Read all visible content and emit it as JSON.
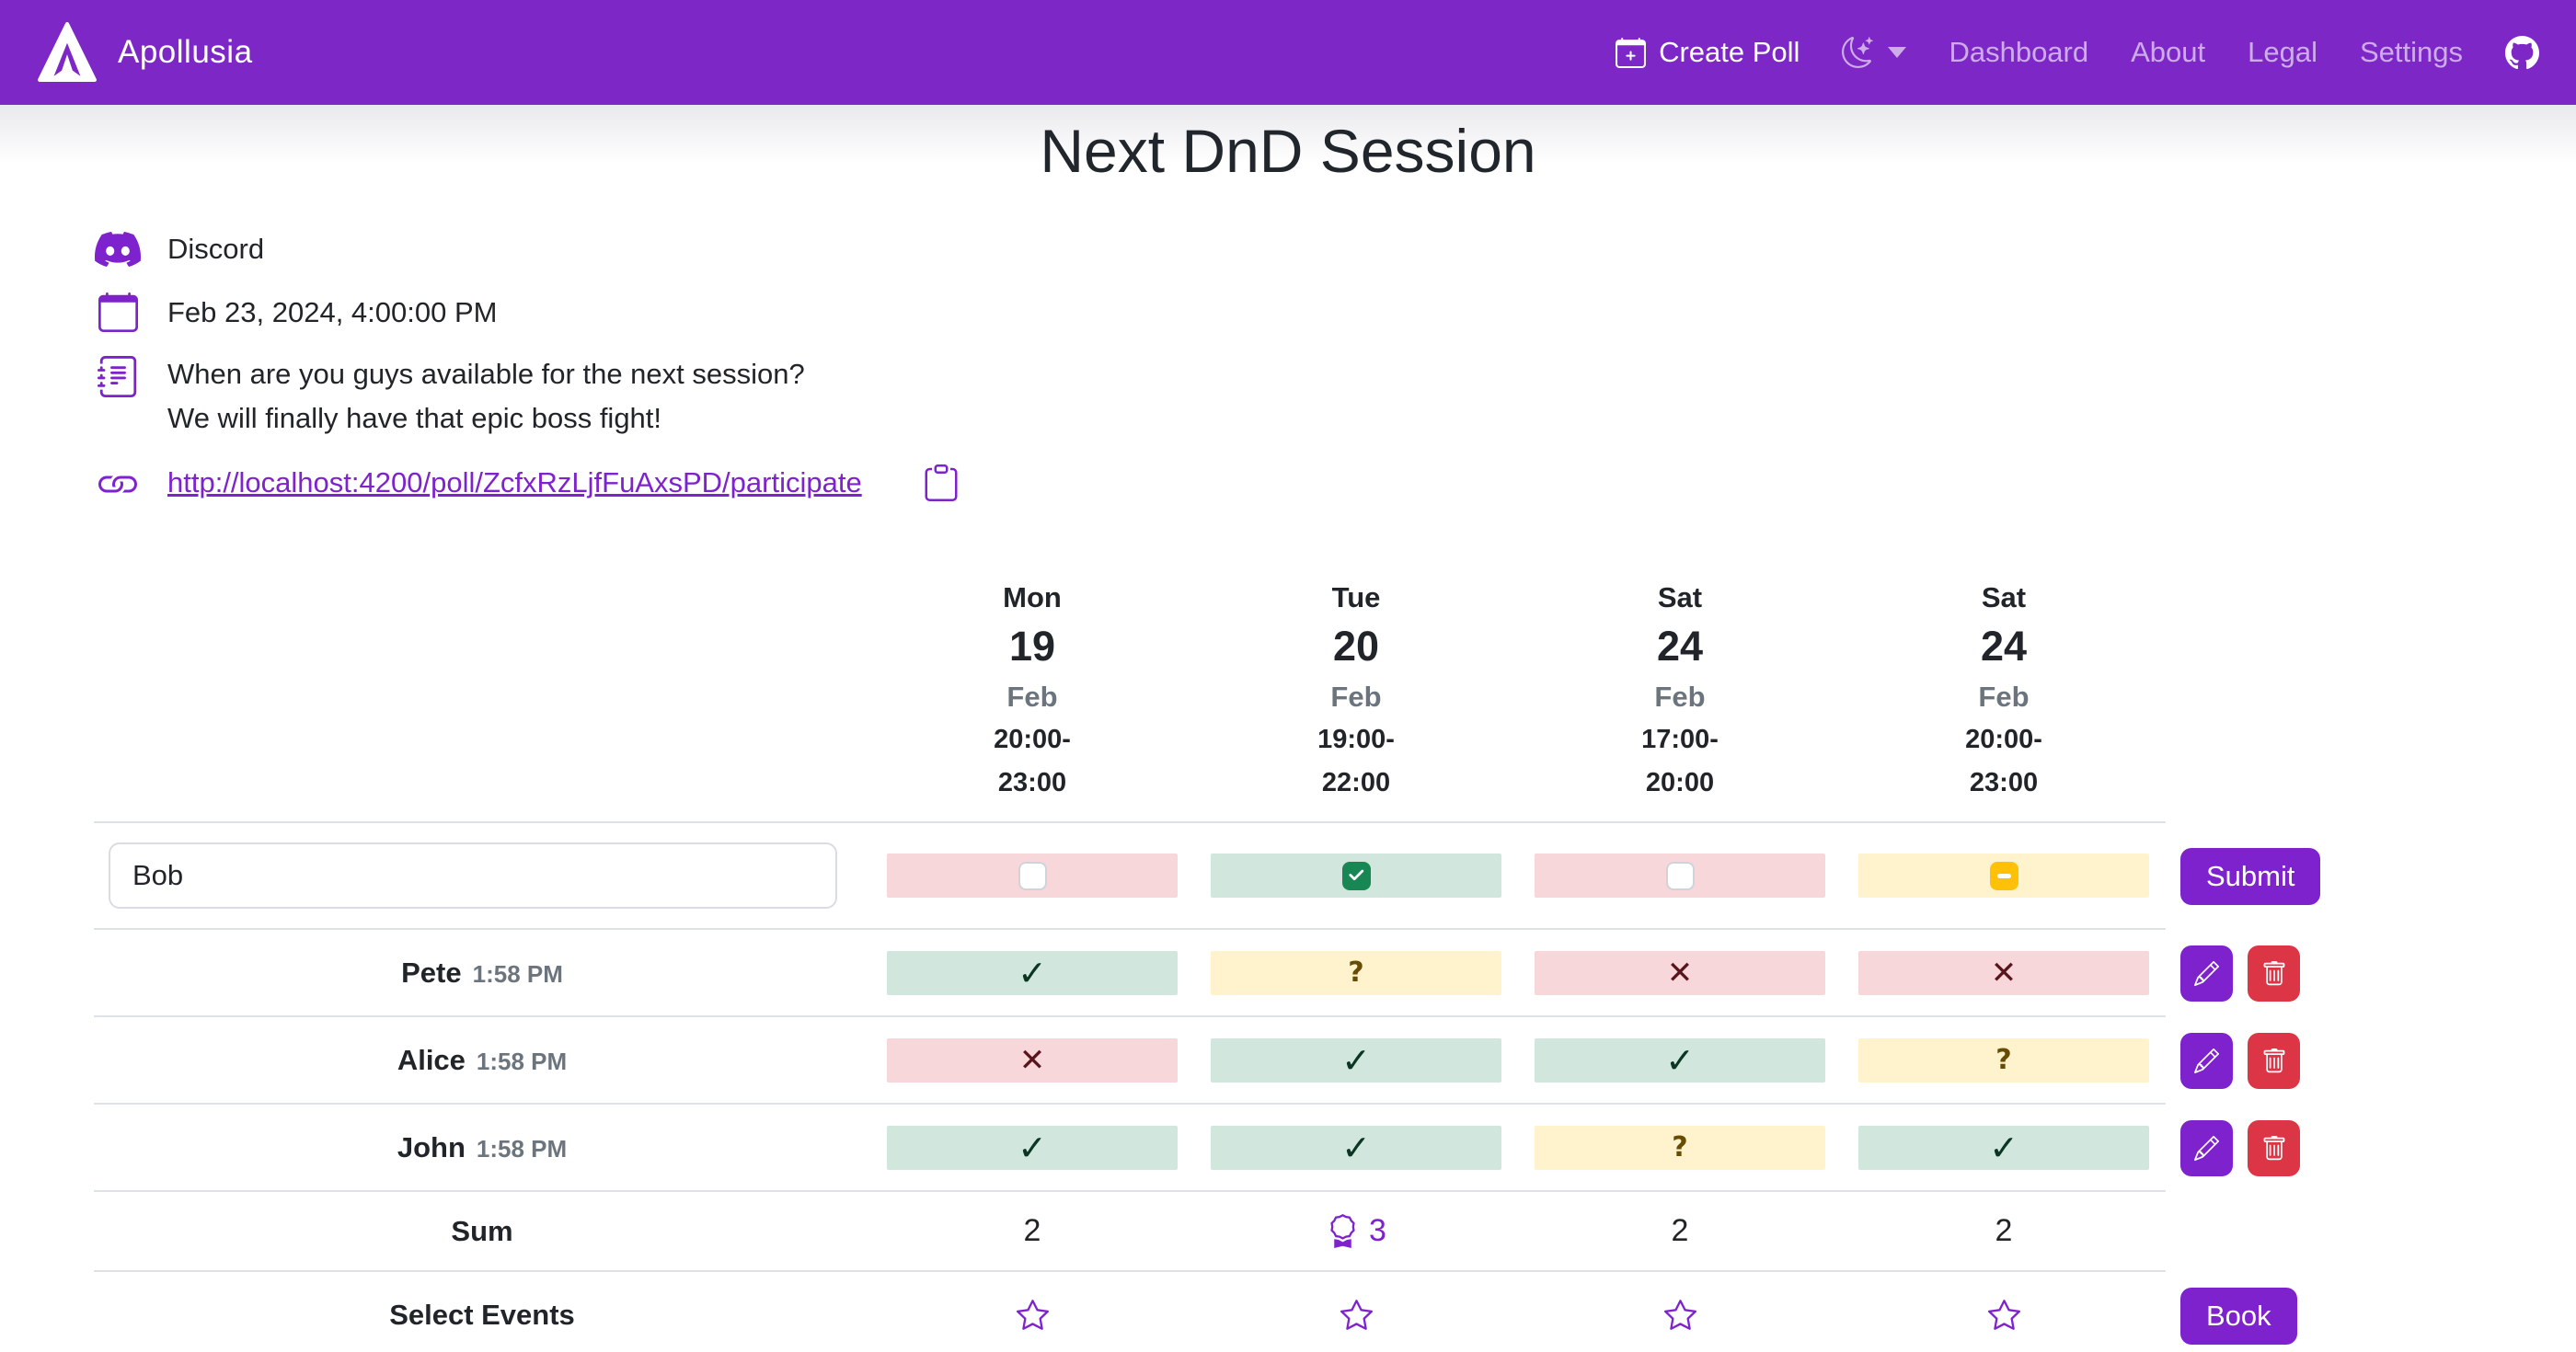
{
  "navbar": {
    "brand": "Apollusia",
    "create_poll_label": "Create Poll",
    "links": [
      {
        "label": "Dashboard"
      },
      {
        "label": "About"
      },
      {
        "label": "Legal"
      },
      {
        "label": "Settings"
      }
    ]
  },
  "poll": {
    "title": "Next DnD Session",
    "location": "Discord",
    "deadline": "Feb 23, 2024, 4:00:00 PM",
    "description": [
      "When are you guys available for the next session?",
      "We will finally have that epic boss fight!"
    ],
    "participate_url": "http://localhost:4200/poll/ZcfxRzLjfFuAxsPD/participate"
  },
  "table": {
    "columns": [
      {
        "day": "Mon",
        "date": "19",
        "month": "Feb",
        "time_start": "20:00-",
        "time_end": "23:00"
      },
      {
        "day": "Tue",
        "date": "20",
        "month": "Feb",
        "time_start": "19:00-",
        "time_end": "22:00"
      },
      {
        "day": "Sat",
        "date": "24",
        "month": "Feb",
        "time_start": "17:00-",
        "time_end": "20:00"
      },
      {
        "day": "Sat",
        "date": "24",
        "month": "Feb",
        "time_start": "20:00-",
        "time_end": "23:00"
      }
    ],
    "new_participant": {
      "name_value": "Bob",
      "states": [
        "no",
        "yes",
        "no",
        "maybe"
      ],
      "submit_label": "Submit"
    },
    "participants": [
      {
        "name": "Pete",
        "voted_at": "1:58 PM",
        "votes": [
          "yes",
          "maybe",
          "no",
          "no"
        ]
      },
      {
        "name": "Alice",
        "voted_at": "1:58 PM",
        "votes": [
          "no",
          "yes",
          "yes",
          "maybe"
        ]
      },
      {
        "name": "John",
        "voted_at": "1:58 PM",
        "votes": [
          "yes",
          "yes",
          "maybe",
          "yes"
        ]
      }
    ],
    "sum_row": {
      "label": "Sum",
      "values": [
        "2",
        "3",
        "2",
        "2"
      ],
      "best_index": 1
    },
    "select_row": {
      "label": "Select Events",
      "book_label": "Book"
    },
    "vote_glyphs": {
      "yes": "✓",
      "no": "✕",
      "maybe": "?"
    }
  },
  "icons": {
    "brand": "apollusia-logo-icon",
    "create_poll": "calendar-plus-icon",
    "theme_toggle": "moon-stars-icon",
    "repo": "github-icon",
    "location": "discord-icon",
    "deadline": "calendar-icon",
    "description": "journal-text-icon",
    "share": "link-icon",
    "copy": "clipboard-icon",
    "edit": "pencil-icon",
    "delete": "trash-icon",
    "best_sum": "award-icon",
    "select_event": "star-icon"
  },
  "colors": {
    "navbar": "#7c27c6",
    "accent": "#7e22ce",
    "danger": "#dc3545",
    "yes_bg": "#d1e7dd",
    "no_bg": "#f8d7da",
    "maybe_bg": "#fff3cd",
    "yes_text": "#0a3622",
    "no_text": "#58151c",
    "maybe_text": "#664d03",
    "checkbox_yes": "#198754",
    "checkbox_maybe": "#ffc107",
    "muted": "#6c757d",
    "border": "#dee2e6"
  }
}
